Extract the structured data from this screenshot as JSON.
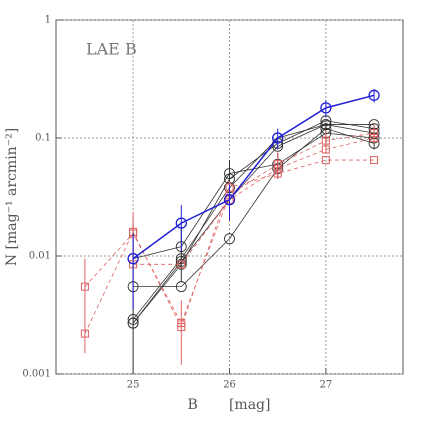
{
  "chart_data": {
    "type": "line",
    "annotation": "LAE B",
    "xlabel": "B       [mag]",
    "ylabel": "N [mag⁻¹ arcmin⁻²]",
    "x": [
      24.5,
      25.0,
      25.5,
      26.0,
      26.5,
      27.0,
      27.5
    ],
    "xlim": [
      24.2,
      27.8
    ],
    "xticks": [
      25,
      26,
      27
    ],
    "ylim": [
      0.001,
      1
    ],
    "yticks": [
      0.001,
      0.01,
      0.1,
      1
    ],
    "log_y": true,
    "grid": true,
    "series": [
      {
        "color": "#333333",
        "marker": "circle",
        "dashed": false,
        "values": [
          null,
          0.0027,
          0.0085,
          0.045,
          0.09,
          0.14,
          0.12
        ]
      },
      {
        "color": "#333333",
        "marker": "circle",
        "dashed": false,
        "values": [
          null,
          0.0029,
          0.0095,
          0.038,
          0.1,
          0.13,
          0.13
        ]
      },
      {
        "color": "#333333",
        "marker": "circle",
        "dashed": false,
        "values": [
          null,
          0.0055,
          0.0055,
          0.014,
          0.055,
          0.12,
          0.09
        ]
      },
      {
        "color": "#333333",
        "marker": "circle",
        "dashed": false,
        "values": [
          null,
          0.0095,
          0.012,
          0.05,
          0.06,
          0.11,
          0.1
        ],
        "errors": [
          null,
          0.009,
          0.006,
          0.015,
          0.015,
          0.025,
          0.02
        ]
      },
      {
        "color": "#333333",
        "marker": "circle",
        "dashed": false,
        "values": [
          null,
          0.0027,
          0.009,
          0.03,
          0.085,
          0.13,
          0.11
        ]
      },
      {
        "color": "#e06060",
        "marker": "square",
        "dashed": true,
        "values": [
          0.0055,
          0.0155,
          0.0027,
          0.033,
          0.06,
          0.095,
          0.11
        ],
        "errors": [
          0.004,
          0.008,
          0.0015,
          0.01,
          0.015,
          0.02,
          0.02
        ]
      },
      {
        "color": "#e06060",
        "marker": "square",
        "dashed": true,
        "values": [
          0.0022,
          0.016,
          0.0025,
          0.038,
          0.05,
          0.065,
          0.065
        ]
      },
      {
        "color": "#e06060",
        "marker": "square",
        "dashed": true,
        "values": [
          null,
          0.0085,
          0.0085,
          0.03,
          0.055,
          0.08,
          0.1
        ]
      },
      {
        "color": "#1f1fd6",
        "marker": "circle",
        "dashed": false,
        "values": [
          null,
          0.0095,
          0.019,
          0.03,
          0.1,
          0.18,
          0.23
        ],
        "errors": [
          null,
          0.006,
          0.008,
          0.01,
          0.02,
          0.03,
          0.03
        ]
      }
    ]
  }
}
